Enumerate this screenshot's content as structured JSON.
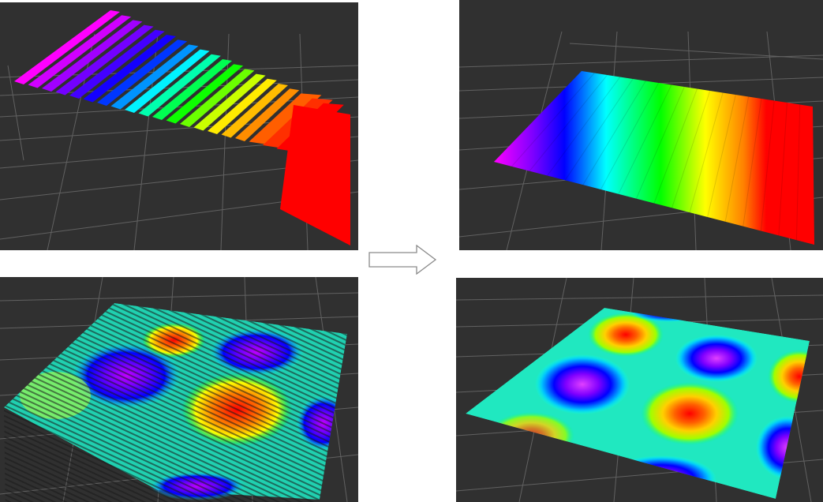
{
  "figure": {
    "panels": [
      {
        "id": "top-left",
        "content": "stepped-colored-strips",
        "state": "before"
      },
      {
        "id": "top-right",
        "content": "continuous-colored-plane",
        "state": "after"
      },
      {
        "id": "bottom-left",
        "content": "noisy-wavy-surface",
        "state": "before"
      },
      {
        "id": "bottom-right",
        "content": "smooth-wavy-surface",
        "state": "after"
      }
    ],
    "arrow_icon": "right-arrow-icon",
    "colors": {
      "viewport_bg": "#303030",
      "grid": "#8a8a8a",
      "page_bg": "#ffffff",
      "colormap": [
        "#ff00ff",
        "#8000ff",
        "#0000ff",
        "#00ffff",
        "#00ff00",
        "#ffff00",
        "#ff8000",
        "#ff0000"
      ]
    }
  }
}
